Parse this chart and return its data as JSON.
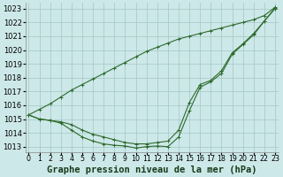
{
  "title": "Graphe pression niveau de la mer (hPa)",
  "xlabel_ticks": [
    "0",
    "1",
    "2",
    "3",
    "4",
    "5",
    "6",
    "7",
    "8",
    "9",
    "10",
    "11",
    "12",
    "13",
    "14",
    "15",
    "16",
    "17",
    "18",
    "19",
    "20",
    "21",
    "22",
    "23"
  ],
  "x": [
    0,
    1,
    2,
    3,
    4,
    5,
    6,
    7,
    8,
    9,
    10,
    11,
    12,
    13,
    14,
    15,
    16,
    17,
    18,
    19,
    20,
    21,
    22,
    23
  ],
  "line_max": [
    1015.3,
    1015.7,
    1016.1,
    1016.6,
    1017.1,
    1017.5,
    1017.9,
    1018.3,
    1018.7,
    1019.1,
    1019.5,
    1019.9,
    1020.2,
    1020.5,
    1020.8,
    1021.0,
    1021.2,
    1021.4,
    1021.6,
    1021.8,
    1022.0,
    1022.2,
    1022.5,
    1023.1
  ],
  "line_mid": [
    1015.3,
    1015.0,
    1014.9,
    1014.8,
    1014.6,
    1014.2,
    1013.9,
    1013.7,
    1013.5,
    1013.3,
    1013.2,
    1013.2,
    1013.3,
    1013.4,
    1014.2,
    1016.2,
    1017.5,
    1017.8,
    1018.5,
    1019.8,
    1020.45,
    1021.2,
    1022.1,
    1023.05
  ],
  "line_min": [
    1015.3,
    1015.0,
    1014.9,
    1014.7,
    1014.2,
    1013.7,
    1013.4,
    1013.2,
    1013.1,
    1013.05,
    1012.9,
    1013.0,
    1013.05,
    1013.0,
    1013.7,
    1015.6,
    1017.3,
    1017.7,
    1018.3,
    1019.7,
    1020.4,
    1021.1,
    1022.1,
    1023.0
  ],
  "bg_color": "#cde8e8",
  "grid_color": "#aacccc",
  "line_color": "#2d6a2d",
  "marker": "+",
  "ylim": [
    1012.6,
    1023.4
  ],
  "yticks": [
    1013,
    1014,
    1015,
    1016,
    1017,
    1018,
    1019,
    1020,
    1021,
    1022,
    1023
  ],
  "xlim": [
    -0.3,
    23.3
  ],
  "title_fontsize": 7.5,
  "tick_fontsize": 6.0,
  "figsize": [
    3.2,
    2.0
  ],
  "dpi": 100
}
